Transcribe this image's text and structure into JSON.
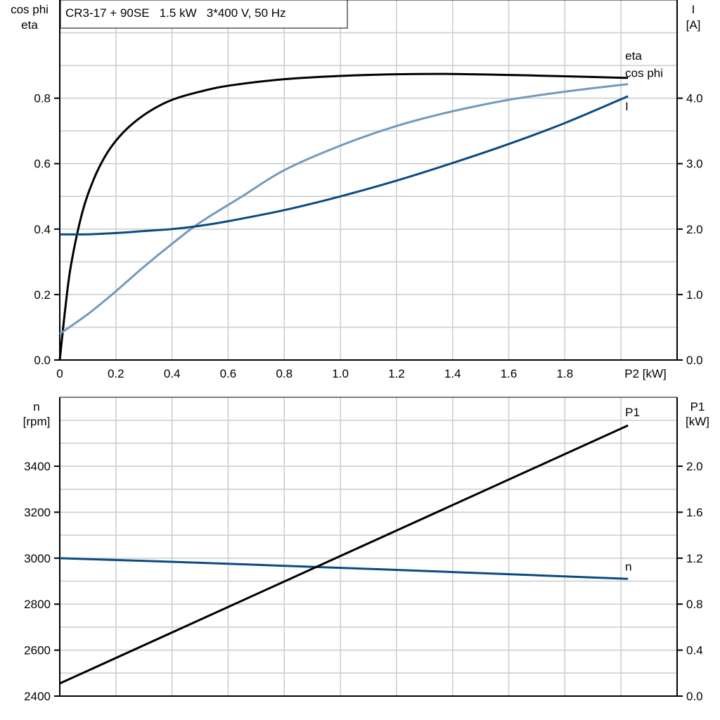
{
  "title": "CR3-17 + 90SE   1.5 kW   3*400 V, 50 Hz",
  "colors": {
    "eta": "#000000",
    "cos_phi": "#7399bd",
    "I": "#0b4a82",
    "n": "#0b4a82",
    "P1": "#000000",
    "grid": "#cccccc"
  },
  "chart_data": [
    {
      "type": "line",
      "xlabel": "P2 [kW]",
      "xlim": [
        0,
        2.2
      ],
      "xticks": [
        "0",
        "0.2",
        "0.4",
        "0.6",
        "0.8",
        "1.0",
        "1.2",
        "1.4",
        "1.6",
        "1.8"
      ],
      "ylabel_left": [
        "cos phi",
        "eta"
      ],
      "ylim_left": [
        0,
        1.1
      ],
      "yticks_left": [
        "0.0",
        "0.2",
        "0.4",
        "0.6",
        "0.8"
      ],
      "ylabel_right": [
        "I",
        "[A]"
      ],
      "ylim_right": [
        0,
        5.5
      ],
      "yticks_right": [
        "0.0",
        "1.0",
        "2.0",
        "3.0",
        "4.0"
      ],
      "grid": true,
      "series": [
        {
          "name": "eta",
          "axis": "left",
          "x": [
            0,
            0.02,
            0.04,
            0.08,
            0.12,
            0.16,
            0.2,
            0.25,
            0.32,
            0.4,
            0.5,
            0.6,
            0.8,
            1.0,
            1.2,
            1.4,
            1.6,
            1.8,
            2.025
          ],
          "y": [
            0,
            0.16,
            0.29,
            0.45,
            0.55,
            0.62,
            0.67,
            0.715,
            0.76,
            0.795,
            0.82,
            0.838,
            0.858,
            0.868,
            0.873,
            0.874,
            0.871,
            0.867,
            0.862
          ]
        },
        {
          "name": "cos phi",
          "axis": "left",
          "x": [
            0,
            0.1,
            0.2,
            0.3,
            0.4,
            0.5,
            0.65,
            0.8,
            1.0,
            1.2,
            1.4,
            1.6,
            1.8,
            2.025
          ],
          "y": [
            0.08,
            0.14,
            0.21,
            0.285,
            0.355,
            0.42,
            0.5,
            0.58,
            0.655,
            0.715,
            0.76,
            0.795,
            0.82,
            0.843
          ]
        },
        {
          "name": "I",
          "axis": "right",
          "x": [
            0,
            0.1,
            0.2,
            0.3,
            0.4,
            0.5,
            0.6,
            0.8,
            1.0,
            1.2,
            1.4,
            1.6,
            1.8,
            2.025
          ],
          "y": [
            1.92,
            1.92,
            1.94,
            1.97,
            2.0,
            2.05,
            2.12,
            2.29,
            2.5,
            2.74,
            3.01,
            3.3,
            3.62,
            4.03
          ]
        }
      ]
    },
    {
      "type": "line",
      "xlim": [
        0,
        2.2
      ],
      "ylabel_left": [
        "n",
        "[rpm]"
      ],
      "ylim_left": [
        2400,
        3700
      ],
      "yticks_left": [
        "2400",
        "2600",
        "2800",
        "3000",
        "3200",
        "3400"
      ],
      "ylabel_right": [
        "P1",
        "[kW]"
      ],
      "ylim_right": [
        0,
        2.6
      ],
      "yticks_right": [
        "0.0",
        "0.4",
        "0.8",
        "1.2",
        "1.6",
        "2.0"
      ],
      "grid": true,
      "series": [
        {
          "name": "n",
          "axis": "left",
          "x": [
            0,
            0.5,
            1.0,
            1.5,
            2.025
          ],
          "y": [
            3000,
            2980,
            2958,
            2935,
            2910
          ]
        },
        {
          "name": "P1",
          "axis": "right",
          "x": [
            0,
            2.025
          ],
          "y": [
            0.11,
            2.355
          ]
        }
      ]
    }
  ]
}
